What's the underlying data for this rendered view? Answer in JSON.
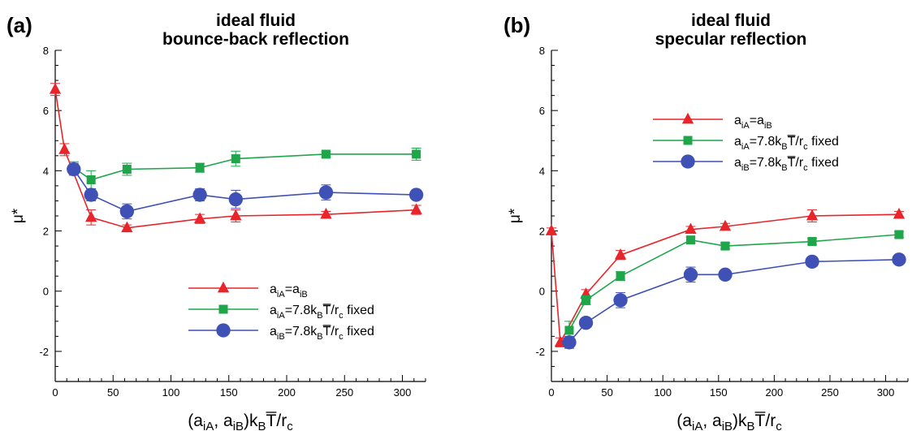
{
  "chart_data": [
    {
      "type": "line",
      "panel_label": "(a)",
      "title": [
        "ideal fluid",
        "bounce-back reflection"
      ],
      "xlabel": "(a_iA, a_iB)k_B T/r_c",
      "ylabel": "μ*",
      "xlim": [
        0,
        320
      ],
      "ylim": [
        -3,
        8
      ],
      "xticks": [
        0,
        50,
        100,
        150,
        200,
        250,
        300
      ],
      "yticks": [
        -2,
        0,
        2,
        4,
        6,
        8
      ],
      "legend_position": "lower-right",
      "series": [
        {
          "name": "a_iA=a_iB",
          "color": "#e8252a",
          "marker": "triangle",
          "x": [
            0,
            8,
            31,
            62,
            125,
            156,
            234,
            312
          ],
          "y": [
            6.7,
            4.7,
            2.45,
            2.1,
            2.4,
            2.5,
            2.55,
            2.7
          ],
          "err": [
            0.2,
            0.2,
            0.25,
            0.1,
            0.15,
            0.2,
            0.1,
            0.15
          ]
        },
        {
          "name": "a_iA=7.8k_B T/r_c fixed",
          "color": "#1fa64a",
          "marker": "square",
          "x": [
            16,
            31,
            62,
            125,
            156,
            234,
            312
          ],
          "y": [
            4.1,
            3.7,
            4.05,
            4.1,
            4.4,
            4.55,
            4.55
          ],
          "err": [
            0.2,
            0.3,
            0.2,
            0.15,
            0.25,
            0.1,
            0.2
          ]
        },
        {
          "name": "a_iB=7.8k_B T/r_c fixed",
          "color": "#3f51b5",
          "marker": "circle",
          "x": [
            16,
            31,
            62,
            125,
            156,
            234,
            312
          ],
          "y": [
            4.05,
            3.2,
            2.65,
            3.2,
            3.05,
            3.28,
            3.2
          ],
          "err": [
            0.2,
            0.2,
            0.25,
            0.2,
            0.3,
            0.25,
            0.1
          ]
        }
      ]
    },
    {
      "type": "line",
      "panel_label": "(b)",
      "title": [
        "ideal fluid",
        "specular reflection"
      ],
      "xlabel": "(a_iA, a_iB)k_B T/r_c",
      "ylabel": "μ*",
      "xlim": [
        0,
        320
      ],
      "ylim": [
        -3,
        8
      ],
      "xticks": [
        0,
        50,
        100,
        150,
        200,
        250,
        300
      ],
      "yticks": [
        -2,
        0,
        2,
        4,
        6,
        8
      ],
      "legend_position": "top-right",
      "series": [
        {
          "name": "a_iA=a_iB",
          "color": "#e8252a",
          "marker": "triangle",
          "x": [
            0,
            8,
            31,
            62,
            125,
            156,
            234,
            312
          ],
          "y": [
            2.0,
            -1.7,
            -0.1,
            1.2,
            2.05,
            2.15,
            2.5,
            2.55
          ],
          "err": [
            0.1,
            0.15,
            0.15,
            0.15,
            0.1,
            0.1,
            0.2,
            0.1
          ]
        },
        {
          "name": "a_iA=7.8k_B T/r_c fixed",
          "color": "#1fa64a",
          "marker": "square",
          "x": [
            16,
            31,
            62,
            125,
            156,
            234,
            312
          ],
          "y": [
            -1.3,
            -0.3,
            0.5,
            1.7,
            1.5,
            1.65,
            1.88
          ],
          "err": [
            0.3,
            0.15,
            0.15,
            0.1,
            0.1,
            0.1,
            0.1
          ]
        },
        {
          "name": "a_iB=7.8k_B T/r_c fixed",
          "color": "#3f51b5",
          "marker": "circle",
          "x": [
            16,
            31,
            62,
            125,
            156,
            234,
            312
          ],
          "y": [
            -1.7,
            -1.05,
            -0.3,
            0.55,
            0.55,
            0.98,
            1.05
          ],
          "err": [
            0.2,
            0.15,
            0.25,
            0.25,
            0.15,
            0.1,
            0.1
          ]
        }
      ]
    }
  ]
}
